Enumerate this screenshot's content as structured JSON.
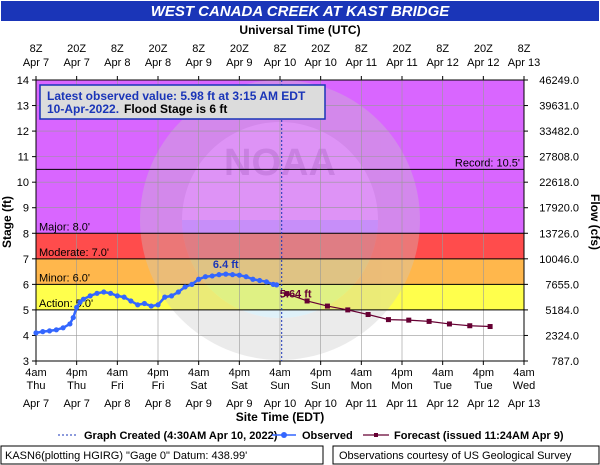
{
  "chart_data": {
    "type": "line",
    "title": "WEST CANADA CREEK AT KAST BRIDGE",
    "top_axis_title": "Universal Time (UTC)",
    "xlabel": "Site Time (EDT)",
    "ylabel": "Stage (ft)",
    "ylabel_right": "Flow (cfs)",
    "ylim": [
      3,
      14
    ],
    "xlim": [
      "Apr 7 4am",
      "Apr 13 4am"
    ],
    "time_units": "hours after Apr 7 4am EDT",
    "y_ticks": [
      3,
      4,
      5,
      6,
      7,
      8,
      9,
      10,
      11,
      12,
      13,
      14
    ],
    "bottom_ticks": [
      {
        "t": 0,
        "time": "4am",
        "day": "Thu",
        "date": "Apr 7"
      },
      {
        "t": 12,
        "time": "4pm",
        "day": "Thu",
        "date": "Apr 7"
      },
      {
        "t": 24,
        "time": "4am",
        "day": "Fri",
        "date": "Apr 8"
      },
      {
        "t": 36,
        "time": "4pm",
        "day": "Fri",
        "date": "Apr 8"
      },
      {
        "t": 48,
        "time": "4am",
        "day": "Sat",
        "date": "Apr 9"
      },
      {
        "t": 60,
        "time": "4pm",
        "day": "Sat",
        "date": "Apr 9"
      },
      {
        "t": 72,
        "time": "4am",
        "day": "Sun",
        "date": "Apr 10"
      },
      {
        "t": 84,
        "time": "4pm",
        "day": "Sun",
        "date": "Apr 10"
      },
      {
        "t": 96,
        "time": "4am",
        "day": "Mon",
        "date": "Apr 11"
      },
      {
        "t": 108,
        "time": "4pm",
        "day": "Mon",
        "date": "Apr 11"
      },
      {
        "t": 120,
        "time": "4am",
        "day": "Tue",
        "date": "Apr 12"
      },
      {
        "t": 132,
        "time": "4pm",
        "day": "Tue",
        "date": "Apr 12"
      },
      {
        "t": 144,
        "time": "4am",
        "day": "Wed",
        "date": "Apr 13"
      }
    ],
    "top_ticks": [
      {
        "t": 0,
        "time": "8Z",
        "date": "Apr 7"
      },
      {
        "t": 12,
        "time": "20Z",
        "date": "Apr 7"
      },
      {
        "t": 24,
        "time": "8Z",
        "date": "Apr 8"
      },
      {
        "t": 36,
        "time": "20Z",
        "date": "Apr 8"
      },
      {
        "t": 48,
        "time": "8Z",
        "date": "Apr 9"
      },
      {
        "t": 60,
        "time": "20Z",
        "date": "Apr 9"
      },
      {
        "t": 72,
        "time": "8Z",
        "date": "Apr 10"
      },
      {
        "t": 84,
        "time": "20Z",
        "date": "Apr 10"
      },
      {
        "t": 96,
        "time": "8Z",
        "date": "Apr 11"
      },
      {
        "t": 108,
        "time": "20Z",
        "date": "Apr 11"
      },
      {
        "t": 120,
        "time": "8Z",
        "date": "Apr 12"
      },
      {
        "t": 132,
        "time": "20Z",
        "date": "Apr 12"
      },
      {
        "t": 144,
        "time": "8Z",
        "date": "Apr 13"
      }
    ],
    "flow_ticks": [
      {
        "stage": 4,
        "label": "787.0"
      },
      {
        "stage": 5,
        "label": "2324.0"
      },
      {
        "stage": 6,
        "label": "5184.0"
      },
      {
        "stage": 7,
        "label": "7655.0"
      },
      {
        "stage": 8,
        "label": "10046.0"
      },
      {
        "stage": 9,
        "label": "13726.0"
      },
      {
        "stage": 10,
        "label": "17920.0"
      },
      {
        "stage": 11,
        "label": "22618.0"
      },
      {
        "stage": 12,
        "label": "27808.0"
      },
      {
        "stage": 13,
        "label": "33482.0"
      },
      {
        "stage": 14,
        "label": "39631.0"
      },
      {
        "stage": 15,
        "label": "46249.0"
      }
    ],
    "flood_categories": [
      {
        "name": "Action",
        "stage": 5,
        "label": "Action: 5.0'",
        "color": "#ffff00"
      },
      {
        "name": "Minor",
        "stage": 6,
        "label": "Minor: 6.0'",
        "color": "#ff9900"
      },
      {
        "name": "Moderate",
        "stage": 7,
        "label": "Moderate: 7.0'",
        "color": "#ff0000"
      },
      {
        "name": "Major",
        "stage": 8,
        "label": "Major: 8.0'",
        "color": "#cc33ff"
      }
    ],
    "record": {
      "stage": 10.5,
      "label": "Record: 10.5'"
    },
    "latest": {
      "line1": "Latest observed value: 5.98 ft at 3:15 AM EDT",
      "line2_date": "10-Apr-2022.",
      "line2_flood": "Flood Stage is 6 ft"
    },
    "observed_peak_label": "6.4 ft",
    "forecast_first_label": "5.64 ft",
    "graph_created_t": 72.5,
    "series": [
      {
        "name": "Observed",
        "color": "#3366ff",
        "x": [
          0,
          2,
          4,
          6,
          8,
          10,
          11,
          12,
          13,
          14,
          16,
          18,
          20,
          22,
          24,
          26,
          28,
          30,
          32,
          34,
          36,
          38,
          40,
          42,
          44,
          46,
          48,
          50,
          52,
          54,
          56,
          58,
          60,
          62,
          64,
          66,
          68,
          70,
          71
        ],
        "y": [
          4.1,
          4.15,
          4.18,
          4.22,
          4.3,
          4.45,
          4.7,
          5.1,
          5.3,
          5.42,
          5.55,
          5.65,
          5.7,
          5.65,
          5.55,
          5.5,
          5.35,
          5.2,
          5.25,
          5.15,
          5.2,
          5.5,
          5.55,
          5.7,
          5.9,
          6.0,
          6.2,
          6.3,
          6.33,
          6.38,
          6.4,
          6.38,
          6.36,
          6.3,
          6.2,
          6.15,
          6.1,
          6.0,
          5.98
        ]
      },
      {
        "name": "Forecast (issued 11:24AM Apr 9)",
        "color": "#660033",
        "x": [
          74,
          80,
          86,
          92,
          98,
          104,
          110,
          116,
          122,
          128,
          134
        ],
        "y": [
          5.64,
          5.35,
          5.15,
          5.0,
          4.82,
          4.62,
          4.6,
          4.55,
          4.45,
          4.38,
          4.35
        ]
      }
    ],
    "legend": {
      "created": "Graph Created (4:30AM Apr 10, 2022)",
      "observed": "Observed",
      "forecast": "Forecast (issued 11:24AM Apr 9)"
    },
    "footer": {
      "left": "KASN6(plotting HGIRG) \"Gage 0\" Datum: 438.99'",
      "right": "Observations courtesy of US Geological Survey"
    }
  }
}
